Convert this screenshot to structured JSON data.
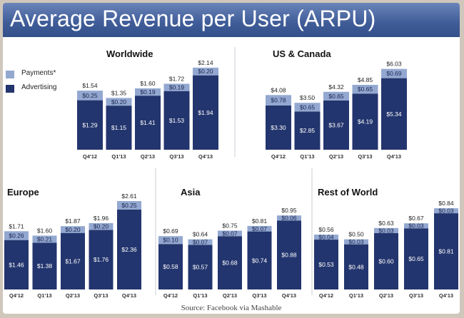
{
  "title": "Average Revenue per User (ARPU)",
  "source": "Source: Facebook via Mashable",
  "colors": {
    "payments": "#93a8d0",
    "advertising": "#23356e",
    "title_bg": "#3f5c98"
  },
  "legend": {
    "payments": "Payments*",
    "advertising": "Advertising"
  },
  "chart_data": [
    {
      "type": "bar",
      "title": "Worldwide",
      "stacked": true,
      "categories": [
        "Q4'12",
        "Q1'13",
        "Q2'13",
        "Q3'13",
        "Q4'13"
      ],
      "series": [
        {
          "name": "Advertising",
          "values": [
            1.29,
            1.15,
            1.41,
            1.53,
            1.94
          ],
          "labels": [
            "$1.29",
            "$1.15",
            "$1.41",
            "$1.53",
            "$1.94"
          ]
        },
        {
          "name": "Payments*",
          "values": [
            0.25,
            0.2,
            0.19,
            0.19,
            0.2
          ],
          "labels": [
            "$0.25",
            "$0.20",
            "$0.19",
            "$0.19",
            "$0.20"
          ]
        }
      ],
      "totals": [
        1.54,
        1.35,
        1.6,
        1.72,
        2.14
      ],
      "total_labels": [
        "$1.54",
        "$1.35",
        "$1.60",
        "$1.72",
        "$2.14"
      ]
    },
    {
      "type": "bar",
      "title": "US & Canada",
      "stacked": true,
      "categories": [
        "Q4'12",
        "Q1'13",
        "Q2'13",
        "Q3'13",
        "Q4'13"
      ],
      "series": [
        {
          "name": "Advertising",
          "values": [
            3.3,
            2.85,
            3.67,
            4.19,
            5.34
          ],
          "labels": [
            "$3.30",
            "$2.85",
            "$3.67",
            "$4.19",
            "$5.34"
          ]
        },
        {
          "name": "Payments*",
          "values": [
            0.78,
            0.65,
            0.65,
            0.65,
            0.69
          ],
          "labels": [
            "$0.78",
            "$0.65",
            "$0.65",
            "$0.65",
            "$0.69"
          ]
        }
      ],
      "totals": [
        4.08,
        3.5,
        4.32,
        4.85,
        6.03
      ],
      "total_labels": [
        "$4.08",
        "$3.50",
        "$4.32",
        "$4.85",
        "$6.03"
      ]
    },
    {
      "type": "bar",
      "title": "Europe",
      "stacked": true,
      "categories": [
        "Q4'12",
        "Q1'13",
        "Q2'13",
        "Q3'13",
        "Q4'13"
      ],
      "series": [
        {
          "name": "Advertising",
          "values": [
            1.46,
            1.38,
            1.67,
            1.76,
            2.36
          ],
          "labels": [
            "$1.46",
            "$1.38",
            "$1.67",
            "$1.76",
            "$2.36"
          ]
        },
        {
          "name": "Payments*",
          "values": [
            0.26,
            0.21,
            0.2,
            0.2,
            0.25
          ],
          "labels": [
            "$0.26",
            "$0.21",
            "$0.20",
            "$0.20",
            "$0.25"
          ]
        }
      ],
      "totals": [
        1.71,
        1.6,
        1.87,
        1.96,
        2.61
      ],
      "total_labels": [
        "$1.71",
        "$1.60",
        "$1.87",
        "$1.96",
        "$2.61"
      ]
    },
    {
      "type": "bar",
      "title": "Asia",
      "stacked": true,
      "categories": [
        "Q4'12",
        "Q1'13",
        "Q2'13",
        "Q3'13",
        "Q4'13"
      ],
      "series": [
        {
          "name": "Advertising",
          "values": [
            0.58,
            0.57,
            0.68,
            0.74,
            0.88
          ],
          "labels": [
            "$0.58",
            "$0.57",
            "$0.68",
            "$0.74",
            "$0.88"
          ]
        },
        {
          "name": "Payments*",
          "values": [
            0.1,
            0.07,
            0.07,
            0.07,
            0.06
          ],
          "labels": [
            "$0.10",
            "$0.07",
            "$0.07",
            "$0.07",
            "$0.06"
          ]
        }
      ],
      "totals": [
        0.69,
        0.64,
        0.75,
        0.81,
        0.95
      ],
      "total_labels": [
        "$0.69",
        "$0.64",
        "$0.75",
        "$0.81",
        "$0.95"
      ]
    },
    {
      "type": "bar",
      "title": "Rest of World",
      "stacked": true,
      "categories": [
        "Q4'12",
        "Q1'13",
        "Q2'13",
        "Q3'13",
        "Q4'13"
      ],
      "series": [
        {
          "name": "Advertising",
          "values": [
            0.53,
            0.48,
            0.6,
            0.65,
            0.81
          ],
          "labels": [
            "$0.53",
            "$0.48",
            "$0.60",
            "$0.65",
            "$0.81"
          ]
        },
        {
          "name": "Payments*",
          "values": [
            0.04,
            0.03,
            0.03,
            0.03,
            0.03
          ],
          "labels": [
            "$0.04",
            "$0.03",
            "$0.03",
            "$0.03",
            "$0.03"
          ]
        }
      ],
      "totals": [
        0.56,
        0.5,
        0.63,
        0.67,
        0.84
      ],
      "total_labels": [
        "$0.56",
        "$0.50",
        "$0.63",
        "$0.67",
        "$0.84"
      ]
    }
  ]
}
